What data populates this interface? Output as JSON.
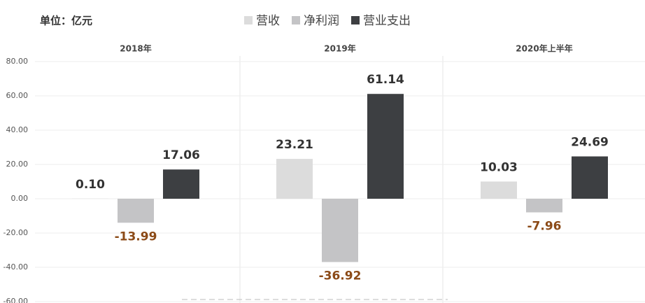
{
  "chart_data": {
    "type": "bar",
    "unit_label": "单位：亿元",
    "categories": [
      "2018年",
      "2019年",
      "2020年上半年"
    ],
    "series": [
      {
        "name": "营收",
        "color": "#dcdcdc",
        "values": [
          0.1,
          23.21,
          10.03
        ],
        "value_labels": [
          "0.10",
          "23.21",
          "10.03"
        ]
      },
      {
        "name": "净利润",
        "color": "#c4c4c6",
        "values": [
          -13.99,
          -36.92,
          -7.96
        ],
        "value_labels": [
          "-13.99",
          "-36.92",
          "-7.96"
        ]
      },
      {
        "name": "营业支出",
        "color": "#3d3f42",
        "values": [
          17.06,
          61.14,
          24.69
        ],
        "value_labels": [
          "17.06",
          "61.14",
          "24.69"
        ]
      }
    ],
    "ylim": [
      -60,
      80
    ],
    "yticks": [
      {
        "value": -60,
        "label": "-60.00"
      },
      {
        "value": -40,
        "label": "-40.00"
      },
      {
        "value": -20,
        "label": "-20.00"
      },
      {
        "value": 0,
        "label": "0.00"
      },
      {
        "value": 20,
        "label": "20.00"
      },
      {
        "value": 40,
        "label": "40.00"
      },
      {
        "value": 60,
        "label": "60.00"
      },
      {
        "value": 80,
        "label": "80.00"
      }
    ],
    "grid": true,
    "legend": "top",
    "negative_label_color": "#8b4a17"
  }
}
